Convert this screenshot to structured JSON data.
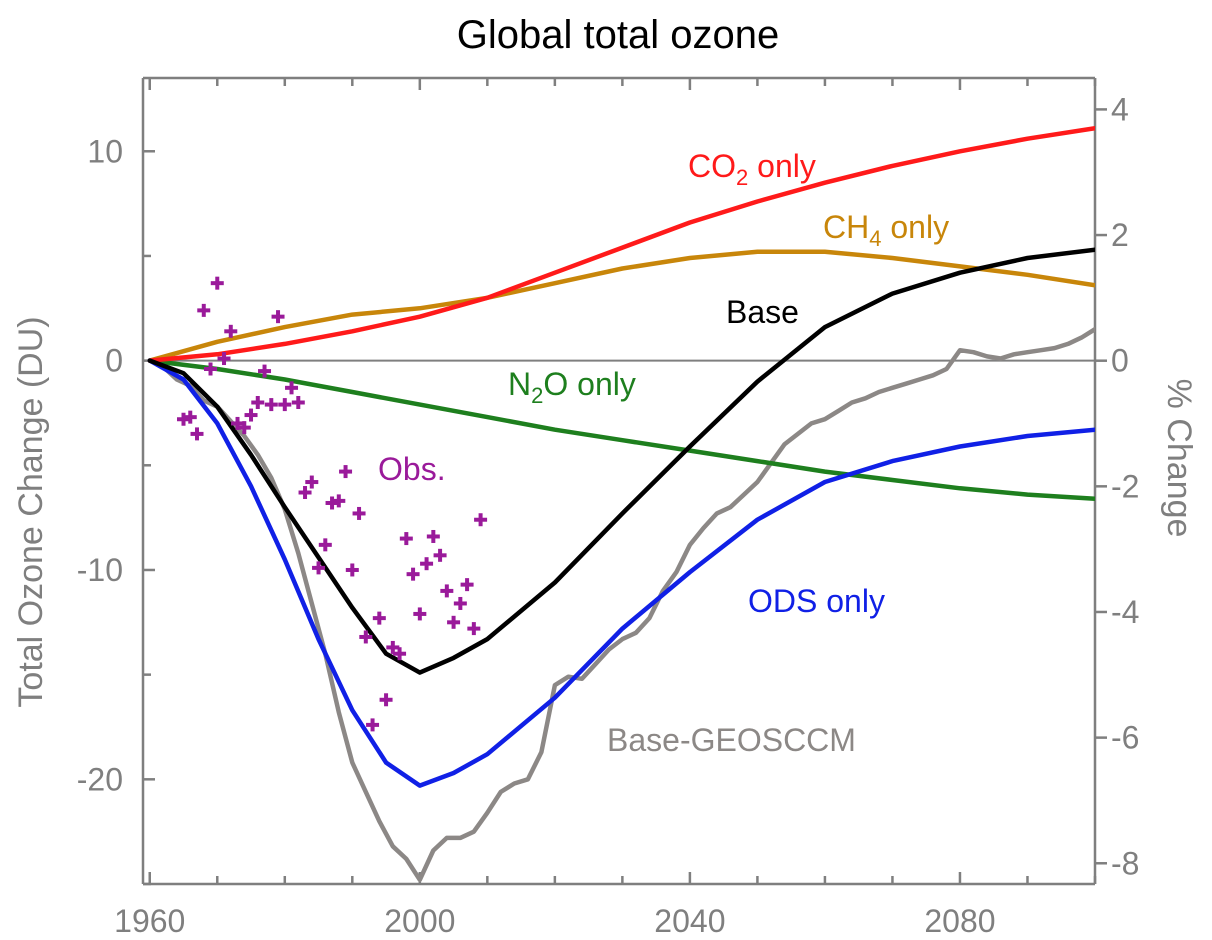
{
  "chart_data": {
    "type": "line",
    "title": "Global total ozone",
    "xlabel": "",
    "ylabel": "Total Ozone Change (DU)",
    "y2label": "% Change",
    "xlim": [
      1959,
      2100
    ],
    "ylim": [
      -25,
      13.5
    ],
    "y2lim": [
      -8.33,
      4.5
    ],
    "xticks": [
      1960,
      2000,
      2040,
      2080
    ],
    "yticks": [
      10,
      0,
      -10,
      -20
    ],
    "y2ticks": [
      4,
      2,
      0,
      -2,
      -4,
      -6,
      -8
    ],
    "grid": false,
    "legend": "inline labels",
    "series": [
      {
        "name": "CO2 only",
        "label_main": "CO",
        "label_sub": "2",
        "label_rest": " only",
        "color": "#ff1a1a",
        "x": [
          1960,
          1970,
          1980,
          1990,
          2000,
          2010,
          2020,
          2030,
          2040,
          2050,
          2060,
          2070,
          2080,
          2090,
          2100
        ],
        "y": [
          0,
          0.3,
          0.8,
          1.4,
          2.1,
          3.0,
          4.2,
          5.4,
          6.6,
          7.6,
          8.5,
          9.3,
          10.0,
          10.6,
          11.1
        ]
      },
      {
        "name": "CH4 only",
        "label_main": "CH",
        "label_sub": "4",
        "label_rest": " only",
        "color": "#c8860a",
        "x": [
          1960,
          1970,
          1980,
          1990,
          2000,
          2010,
          2020,
          2030,
          2040,
          2050,
          2060,
          2070,
          2080,
          2090,
          2100
        ],
        "y": [
          0,
          0.9,
          1.6,
          2.2,
          2.5,
          3.0,
          3.7,
          4.4,
          4.9,
          5.2,
          5.2,
          4.9,
          4.5,
          4.1,
          3.6
        ]
      },
      {
        "name": "Base",
        "label_main": "Base",
        "label_sub": "",
        "label_rest": "",
        "color": "#000000",
        "x": [
          1960,
          1965,
          1970,
          1975,
          1980,
          1985,
          1990,
          1995,
          2000,
          2005,
          2010,
          2020,
          2030,
          2040,
          2050,
          2060,
          2070,
          2080,
          2090,
          2100
        ],
        "y": [
          0,
          -0.6,
          -2.2,
          -4.5,
          -7.0,
          -9.4,
          -11.8,
          -14.0,
          -14.9,
          -14.2,
          -13.3,
          -10.6,
          -7.3,
          -4.1,
          -1.0,
          1.6,
          3.2,
          4.2,
          4.9,
          5.3
        ]
      },
      {
        "name": "N2O only",
        "label_main": "N",
        "label_sub": "2",
        "label_rest": "O only",
        "color": "#1e7f1e",
        "x": [
          1960,
          1970,
          1980,
          1990,
          2000,
          2010,
          2020,
          2030,
          2040,
          2050,
          2060,
          2070,
          2080,
          2090,
          2100
        ],
        "y": [
          0,
          -0.4,
          -0.9,
          -1.5,
          -2.1,
          -2.7,
          -3.3,
          -3.8,
          -4.3,
          -4.8,
          -5.3,
          -5.7,
          -6.1,
          -6.4,
          -6.6
        ]
      },
      {
        "name": "ODS only",
        "label_main": "ODS only",
        "label_sub": "",
        "label_rest": "",
        "color": "#1020e6",
        "x": [
          1960,
          1965,
          1970,
          1975,
          1980,
          1985,
          1990,
          1995,
          2000,
          2005,
          2010,
          2020,
          2030,
          2040,
          2050,
          2060,
          2070,
          2080,
          2090,
          2100
        ],
        "y": [
          0,
          -0.9,
          -3.0,
          -6.0,
          -9.5,
          -13.3,
          -16.7,
          -19.2,
          -20.3,
          -19.7,
          -18.8,
          -16.1,
          -12.8,
          -10.1,
          -7.6,
          -5.8,
          -4.8,
          -4.1,
          -3.6,
          -3.3
        ]
      },
      {
        "name": "Base-GEOSCCM",
        "label_main": "Base-GEOSCCM",
        "label_sub": "",
        "label_rest": "",
        "color": "#8c8886",
        "x": [
          1960,
          1962,
          1964,
          1966,
          1968,
          1970,
          1972,
          1974,
          1976,
          1978,
          1980,
          1982,
          1984,
          1986,
          1988,
          1990,
          1992,
          1994,
          1996,
          1998,
          2000,
          2002,
          2004,
          2006,
          2008,
          2010,
          2012,
          2014,
          2016,
          2018,
          2020,
          2022,
          2024,
          2026,
          2028,
          2030,
          2032,
          2034,
          2036,
          2038,
          2040,
          2042,
          2044,
          2046,
          2048,
          2050,
          2052,
          2054,
          2056,
          2058,
          2060,
          2062,
          2064,
          2066,
          2068,
          2070,
          2072,
          2074,
          2076,
          2078,
          2080,
          2082,
          2084,
          2086,
          2088,
          2090,
          2092,
          2094,
          2096,
          2098,
          2100
        ],
        "y": [
          0,
          -0.3,
          -0.9,
          -1.2,
          -1.9,
          -2.2,
          -2.9,
          -3.6,
          -4.5,
          -5.6,
          -7.1,
          -9.2,
          -11.6,
          -14.0,
          -16.8,
          -19.2,
          -20.6,
          -22.0,
          -23.2,
          -23.8,
          -24.8,
          -23.4,
          -22.8,
          -22.8,
          -22.5,
          -21.6,
          -20.6,
          -20.2,
          -20.0,
          -18.7,
          -15.5,
          -15.1,
          -15.2,
          -14.5,
          -13.8,
          -13.3,
          -13.0,
          -12.3,
          -11.0,
          -10.1,
          -8.8,
          -8.0,
          -7.3,
          -7.0,
          -6.4,
          -5.8,
          -4.9,
          -4.0,
          -3.5,
          -3.0,
          -2.8,
          -2.4,
          -2.0,
          -1.8,
          -1.5,
          -1.3,
          -1.1,
          -0.9,
          -0.7,
          -0.4,
          0.5,
          0.4,
          0.2,
          0.1,
          0.3,
          0.4,
          0.5,
          0.6,
          0.8,
          1.1,
          1.5
        ]
      }
    ],
    "observations": {
      "name": "Obs.",
      "color": "#9a1a9a",
      "x": [
        1965,
        1966,
        1967,
        1968,
        1969,
        1970,
        1971,
        1972,
        1973,
        1974,
        1975,
        1976,
        1977,
        1978,
        1979,
        1980,
        1981,
        1982,
        1983,
        1984,
        1985,
        1986,
        1987,
        1988,
        1989,
        1990,
        1991,
        1992,
        1993,
        1994,
        1995,
        1996,
        1997,
        1998,
        1999,
        2000,
        2001,
        2002,
        2003,
        2004,
        2005,
        2006,
        2007,
        2008,
        2009
      ],
      "y": [
        -2.8,
        -2.7,
        -3.5,
        2.4,
        -0.4,
        3.7,
        0.1,
        1.4,
        -3.0,
        -3.2,
        -2.6,
        -2.0,
        -0.5,
        -2.1,
        2.1,
        -2.1,
        -1.3,
        -2.0,
        -6.3,
        -5.8,
        -9.9,
        -8.8,
        -6.8,
        -6.7,
        -5.3,
        -10.0,
        -7.3,
        -13.2,
        -17.4,
        -12.3,
        -16.2,
        -13.7,
        -14.0,
        -8.5,
        -10.2,
        -12.1,
        -9.7,
        -8.4,
        -9.3,
        -11.0,
        -12.5,
        -11.6,
        -10.7,
        -12.8,
        -7.6
      ]
    },
    "obs_label": "Obs."
  }
}
